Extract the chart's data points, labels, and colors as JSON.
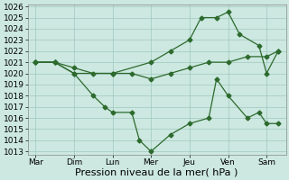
{
  "line1_x": [
    0,
    0.5,
    1.0,
    1.5,
    1.8,
    2.0,
    2.5,
    2.7,
    3.0,
    3.5,
    4.0,
    4.5,
    4.7,
    5.0,
    5.5,
    5.8,
    6.0,
    6.3
  ],
  "line1_y": [
    1021,
    1021,
    1020,
    1018,
    1017,
    1016.5,
    1016.5,
    1014,
    1013,
    1014.5,
    1015.5,
    1016,
    1019.5,
    1018,
    1016,
    1016.5,
    1015.5,
    1015.5
  ],
  "line2_x": [
    0,
    0.5,
    1.0,
    1.5,
    2.0,
    2.5,
    3.0,
    3.5,
    4.0,
    4.5,
    5.0,
    5.5,
    6.0,
    6.3
  ],
  "line2_y": [
    1021,
    1021,
    1020.5,
    1020,
    1020,
    1020,
    1019.5,
    1020,
    1020.5,
    1021,
    1021,
    1021.5,
    1021.5,
    1022
  ],
  "line3_x": [
    0,
    0.5,
    1.0,
    2.0,
    3.0,
    3.5,
    4.0,
    4.3,
    4.7,
    5.0,
    5.3,
    5.8,
    6.0,
    6.3
  ],
  "line3_y": [
    1021,
    1021,
    1020,
    1020,
    1021,
    1022,
    1023,
    1025,
    1025,
    1025.5,
    1023.5,
    1022.5,
    1020,
    1022
  ],
  "color": "#2d6a2d",
  "bg_color": "#cce8e0",
  "grid_color": "#a0c8be",
  "ylim_lo": 1013,
  "ylim_hi": 1026,
  "yticks": [
    1013,
    1014,
    1015,
    1016,
    1017,
    1018,
    1019,
    1020,
    1021,
    1022,
    1023,
    1024,
    1025,
    1026
  ],
  "day_positions": [
    0,
    1,
    2,
    3,
    4,
    5,
    6
  ],
  "xlabels": [
    "Mar",
    "Dim",
    "Lun",
    "Mer",
    "Jeu",
    "Ven",
    "Sam"
  ],
  "xlabel": "Pression niveau de la mer( hPa )",
  "xlabel_fontsize": 8,
  "tick_fontsize": 6.5,
  "xmax": 6.5
}
